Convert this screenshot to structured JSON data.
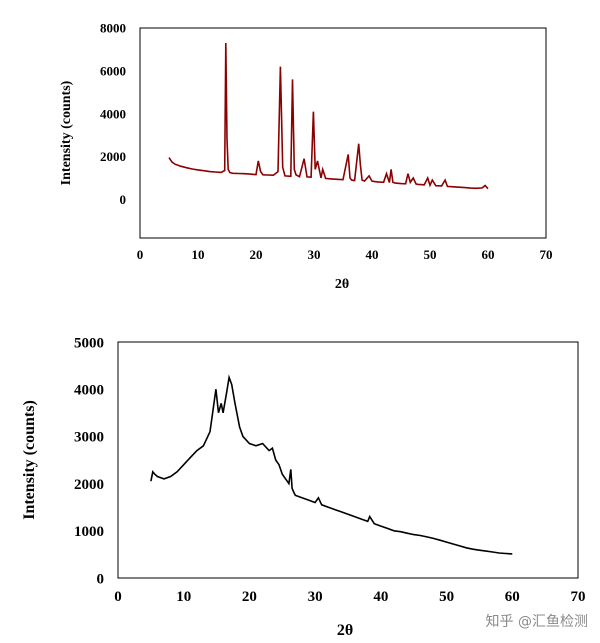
{
  "chart_data": [
    {
      "type": "line",
      "xlabel": "2θ",
      "ylabel": "Intensity (counts)",
      "xlim": [
        0,
        70
      ],
      "ylim": [
        -1800,
        8000
      ],
      "xticks": [
        0,
        10,
        20,
        30,
        40,
        50,
        60,
        70
      ],
      "yticks": [
        0,
        2000,
        4000,
        6000,
        8000
      ],
      "grid": false,
      "color": "#8b0000",
      "series": [
        {
          "x": [
            5,
            5.5,
            6,
            7,
            8,
            9,
            10,
            11,
            12,
            13,
            14,
            14.6,
            14.8,
            15.0,
            15.2,
            15.5,
            16,
            17,
            18,
            19,
            20,
            20.4,
            20.8,
            21.2,
            22,
            23,
            23.8,
            24.2,
            24.6,
            25,
            26,
            26.3,
            26.6,
            26.9,
            27.5,
            28.3,
            28.8,
            29.5,
            29.9,
            30.2,
            30.6,
            31.2,
            31.5,
            32,
            33,
            34,
            35,
            35.9,
            36.2,
            36.5,
            37,
            37.7,
            38.0,
            38.3,
            38.7,
            39.5,
            40,
            40.5,
            41,
            42,
            42.5,
            43,
            43.3,
            43.6,
            44,
            45,
            45.8,
            46.2,
            46.6,
            47.1,
            47.6,
            48,
            48.5,
            49,
            49.6,
            50,
            50.4,
            51,
            52,
            52.6,
            53,
            54,
            55,
            56,
            57,
            58,
            59,
            59.5,
            60
          ],
          "y": [
            1950,
            1750,
            1650,
            1550,
            1480,
            1420,
            1380,
            1340,
            1300,
            1280,
            1260,
            1350,
            7300,
            2800,
            1400,
            1250,
            1220,
            1210,
            1200,
            1180,
            1160,
            1800,
            1300,
            1150,
            1140,
            1130,
            1300,
            6200,
            1500,
            1100,
            1080,
            5600,
            1400,
            1150,
            1060,
            1900,
            1050,
            1040,
            4100,
            1400,
            1800,
            1000,
            1400,
            980,
            960,
            940,
            920,
            2100,
            1000,
            900,
            880,
            2600,
            1600,
            900,
            860,
            1100,
            850,
            830,
            820,
            800,
            1200,
            790,
            1400,
            800,
            760,
            740,
            730,
            1200,
            800,
            1000,
            720,
            700,
            690,
            680,
            1000,
            660,
            900,
            640,
            630,
            900,
            610,
            590,
            570,
            550,
            530,
            520,
            540,
            650,
            500
          ]
        }
      ]
    },
    {
      "type": "line",
      "xlabel": "2θ",
      "ylabel": "Intensity (counts)",
      "xlim": [
        0,
        70
      ],
      "ylim": [
        0,
        5000
      ],
      "xticks": [
        0,
        10,
        20,
        30,
        40,
        50,
        60,
        70
      ],
      "yticks": [
        0,
        1000,
        2000,
        3000,
        4000,
        5000
      ],
      "grid": false,
      "color": "#000000",
      "series": [
        {
          "x": [
            5,
            5.3,
            5.6,
            6,
            7,
            8,
            9,
            10,
            11,
            12,
            13,
            14,
            14.5,
            14.9,
            15.3,
            15.7,
            16,
            16.5,
            16.9,
            17.3,
            17.8,
            18.5,
            19,
            20,
            21,
            22,
            23,
            23.5,
            24,
            24.5,
            25,
            25.5,
            26,
            26.3,
            26.5,
            26.8,
            27,
            28,
            29,
            30,
            30.5,
            31,
            32,
            33,
            34,
            35,
            36,
            37,
            38,
            38.3,
            39,
            40,
            41,
            42,
            43,
            44,
            45,
            46,
            47,
            48,
            49,
            50,
            51,
            52,
            53,
            54,
            55,
            56,
            57,
            58,
            59,
            60
          ],
          "y": [
            2050,
            2250,
            2200,
            2150,
            2100,
            2150,
            2250,
            2400,
            2550,
            2700,
            2800,
            3100,
            3600,
            4000,
            3500,
            3700,
            3500,
            3900,
            4250,
            4100,
            3700,
            3200,
            3000,
            2850,
            2800,
            2850,
            2700,
            2750,
            2500,
            2400,
            2200,
            2100,
            2000,
            2300,
            1900,
            1800,
            1750,
            1700,
            1650,
            1600,
            1700,
            1550,
            1500,
            1450,
            1400,
            1350,
            1300,
            1250,
            1200,
            1300,
            1150,
            1100,
            1050,
            1000,
            980,
            950,
            920,
            900,
            870,
            840,
            800,
            760,
            720,
            680,
            640,
            610,
            590,
            570,
            550,
            530,
            520,
            510
          ]
        }
      ]
    }
  ],
  "watermark": "知乎 @汇鱼检测"
}
